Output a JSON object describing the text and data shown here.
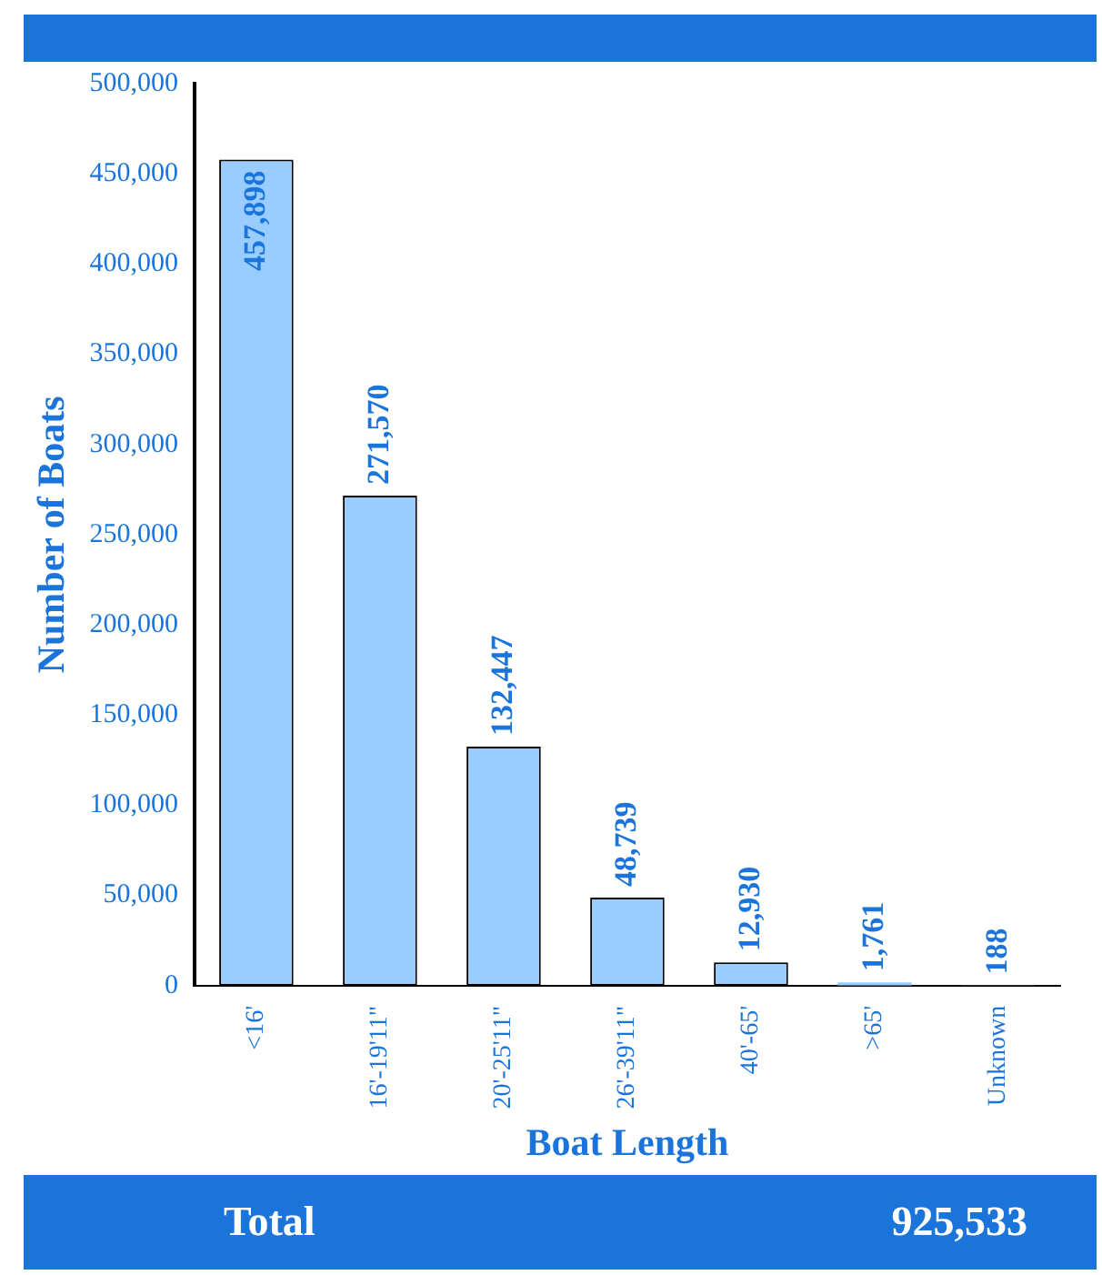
{
  "chart_data": {
    "type": "bar",
    "xlabel": "Boat Length",
    "ylabel": "Number of Boats",
    "categories": [
      "<16'",
      "16'-19'11\"",
      "20'-25'11\"",
      "26'-39'11\"",
      "40'-65'",
      ">65'",
      "Unknown"
    ],
    "values": [
      457898,
      271570,
      132447,
      48739,
      12930,
      1761,
      188
    ],
    "value_labels": [
      "457,898",
      "271,570",
      "132,447",
      "48,739",
      "12,930",
      "1,761",
      "188"
    ],
    "color": "#99ccff",
    "ylim": [
      0,
      500000
    ],
    "yticks": [
      0,
      {
        "value": 50000,
        "label": "50,000"
      },
      {
        "value": 100000,
        "label": "100,000"
      },
      {
        "value": 150000,
        "label": "150,000"
      },
      {
        "value": 200000,
        "label": "200,000"
      },
      {
        "value": 250000,
        "label": "250,000"
      },
      {
        "value": 300000,
        "label": "300,000"
      },
      {
        "value": 350000,
        "label": "350,000"
      },
      {
        "value": 400000,
        "label": "400,000"
      },
      {
        "value": 450000,
        "label": "450,000"
      },
      {
        "value": 500000,
        "label": "500,000"
      }
    ],
    "grid": false,
    "legend": false,
    "annotations": [
      "Total",
      "925,533"
    ]
  }
}
